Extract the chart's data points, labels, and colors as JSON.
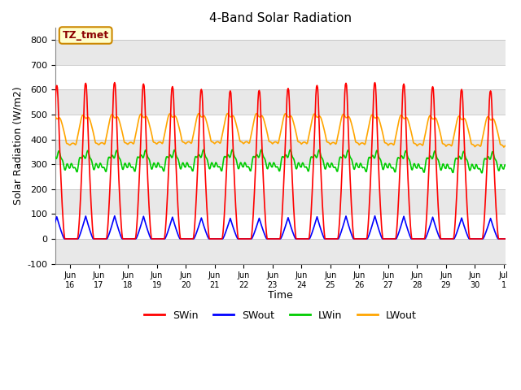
{
  "title": "4-Band Solar Radiation",
  "ylabel": "Solar Radiation (W/m2)",
  "xlabel": "Time",
  "annotation_label": "TZ_tmet",
  "xlim_start_day": 15.5,
  "xlim_end_day": 31.05,
  "ylim": [
    -100,
    850
  ],
  "yticks": [
    -100,
    0,
    100,
    200,
    300,
    400,
    500,
    600,
    700,
    800
  ],
  "xtick_labels": [
    "Jun\n16",
    "Jun\n17",
    "Jun\n18",
    "Jun\n19",
    "Jun\n20",
    "Jun\n21",
    "Jun\n22",
    "Jun\n23",
    "Jun\n24",
    "Jun\n25",
    "Jun\n26",
    "Jun\n27",
    "Jun\n28",
    "Jun\n29",
    "Jun\n30",
    "Jul\n1"
  ],
  "colors": {
    "SWin": "#ff0000",
    "SWout": "#0000ff",
    "LWin": "#00cc00",
    "LWout": "#ffa500"
  },
  "background_color": "#ffffff",
  "band_color_dark": "#e8e8e8",
  "annotation_bg": "#ffffcc",
  "annotation_border": "#cc8800",
  "annotation_text_color": "#8B0000"
}
